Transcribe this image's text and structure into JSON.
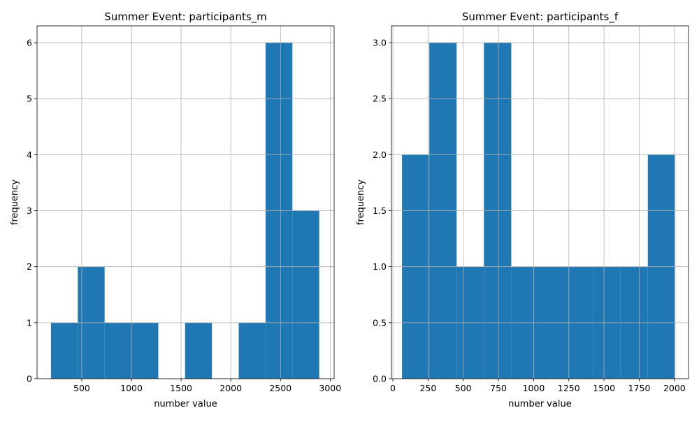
{
  "colors": {
    "bar": "#1f77b4",
    "grid": "#b0b0b0",
    "axis": "#000000",
    "background": "#ffffff"
  },
  "chart_data": [
    {
      "type": "bar",
      "title": "Summer Event: participants_m",
      "xlabel": "number value",
      "ylabel": "frequency",
      "grid": true,
      "xlim": [
        50,
        3040
      ],
      "ylim": [
        0,
        6.3
      ],
      "bin_edges": [
        190,
        460,
        730,
        1000,
        1270,
        1540,
        1810,
        2080,
        2350,
        2620,
        2890
      ],
      "counts": [
        1,
        2,
        1,
        1,
        0,
        1,
        0,
        1,
        6,
        3
      ],
      "xticks": [
        500,
        1000,
        1500,
        2000,
        2500,
        3000
      ],
      "xtick_labels": [
        "500",
        "1000",
        "1500",
        "2000",
        "2500",
        "3000"
      ],
      "yticks": [
        0,
        1,
        2,
        3,
        4,
        5,
        6
      ],
      "ytick_labels": [
        "0",
        "1",
        "2",
        "3",
        "4",
        "5",
        "6"
      ]
    },
    {
      "type": "bar",
      "title": "Summer Event: participants_f",
      "xlabel": "number value",
      "ylabel": "frequency",
      "grid": true,
      "xlim": [
        -10,
        2100
      ],
      "ylim": [
        0,
        3.15
      ],
      "bin_edges": [
        65,
        259,
        453,
        647,
        841,
        1035,
        1229,
        1423,
        1617,
        1811,
        2005
      ],
      "counts": [
        2,
        3,
        1,
        3,
        1,
        1,
        1,
        1,
        1,
        2
      ],
      "xticks": [
        0,
        250,
        500,
        750,
        1000,
        1250,
        1500,
        1750,
        2000
      ],
      "xtick_labels": [
        "0",
        "250",
        "500",
        "750",
        "1000",
        "1250",
        "1500",
        "1750",
        "2000"
      ],
      "yticks": [
        0,
        0.5,
        1.0,
        1.5,
        2.0,
        2.5,
        3.0
      ],
      "ytick_labels": [
        "0.0",
        "0.5",
        "1.0",
        "1.5",
        "2.0",
        "2.5",
        "3.0"
      ]
    }
  ]
}
